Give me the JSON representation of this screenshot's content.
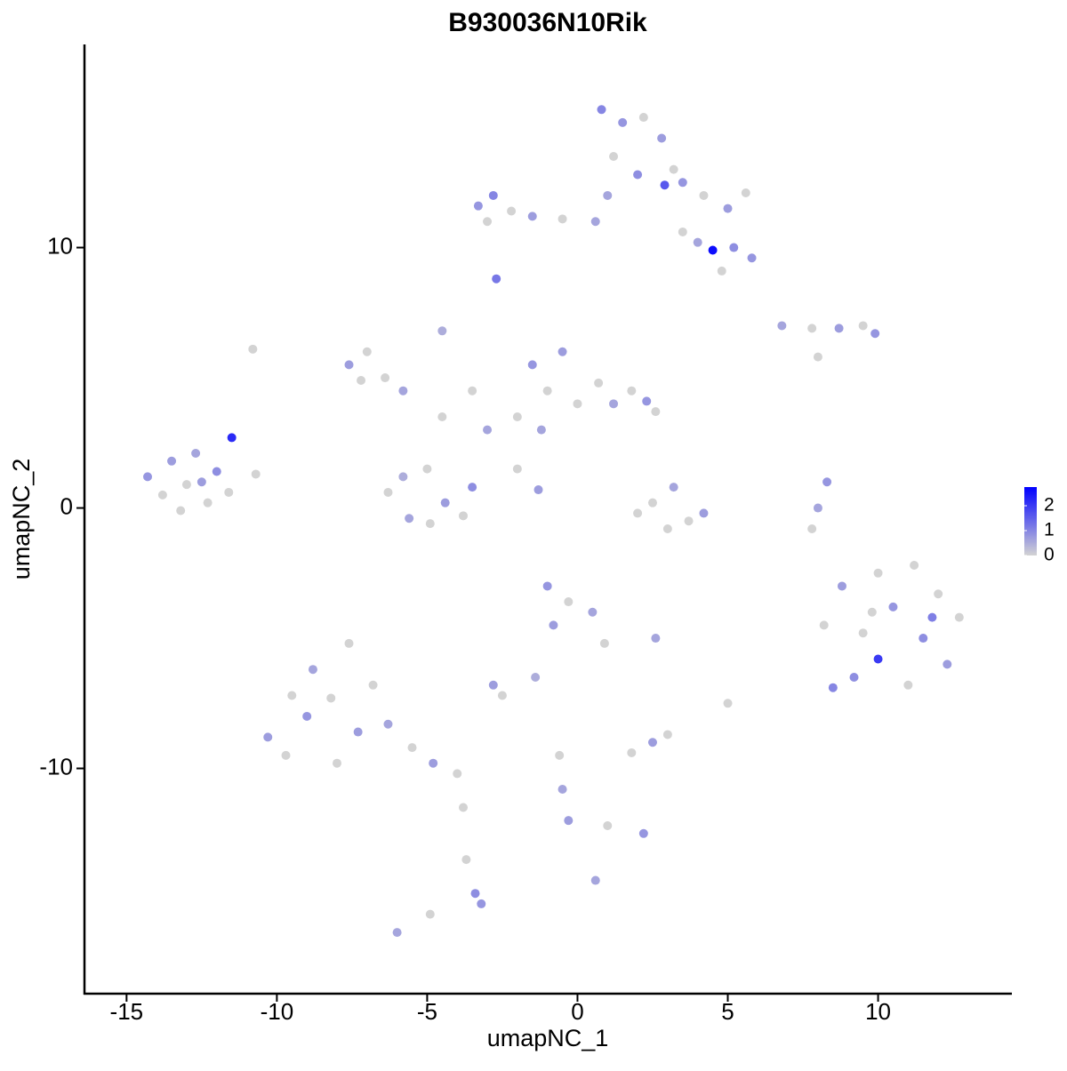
{
  "chart_data": {
    "type": "scatter",
    "title": "B930036N10Rik",
    "xlabel": "umapNC_1",
    "ylabel": "umapNC_2",
    "xlim": [
      -16.4,
      14.45
    ],
    "ylim": [
      -18.65,
      17.8
    ],
    "xticks": [
      -15,
      -10,
      -5,
      0,
      5,
      10
    ],
    "yticks": [
      -10,
      0,
      10
    ],
    "colors": [
      "#d3d3d3",
      "#0000ff"
    ],
    "colorlim": [
      0,
      2.75
    ],
    "colorticks": [
      0,
      1,
      2
    ],
    "points": [
      {
        "x": -14.3,
        "y": 1.2,
        "expression": 0.8
      },
      {
        "x": -13.8,
        "y": 0.5,
        "expression": 0
      },
      {
        "x": -13.5,
        "y": 1.8,
        "expression": 0.7
      },
      {
        "x": -13,
        "y": 0.9,
        "expression": 0
      },
      {
        "x": -12.7,
        "y": 2.1,
        "expression": 0.6
      },
      {
        "x": -12.3,
        "y": 0.2,
        "expression": 0
      },
      {
        "x": -12,
        "y": 1.4,
        "expression": 0.9
      },
      {
        "x": -11.6,
        "y": 0.6,
        "expression": 0
      },
      {
        "x": -11.5,
        "y": 2.7,
        "expression": 2.2
      },
      {
        "x": -10.7,
        "y": 1.3,
        "expression": 0
      },
      {
        "x": -13.2,
        "y": -0.1,
        "expression": 0
      },
      {
        "x": -12.5,
        "y": 1.0,
        "expression": 0.7
      },
      {
        "x": 0.8,
        "y": 15.3,
        "expression": 1.0
      },
      {
        "x": 1.5,
        "y": 14.8,
        "expression": 0.8
      },
      {
        "x": 2.2,
        "y": 15.0,
        "expression": 0
      },
      {
        "x": 2.8,
        "y": 14.2,
        "expression": 0.7
      },
      {
        "x": 1.2,
        "y": 13.5,
        "expression": 0
      },
      {
        "x": 2.0,
        "y": 12.8,
        "expression": 0.9
      },
      {
        "x": 3.2,
        "y": 13.0,
        "expression": 0
      },
      {
        "x": 1.0,
        "y": 12.0,
        "expression": 0.6
      },
      {
        "x": 3.5,
        "y": 12.5,
        "expression": 0.8
      },
      {
        "x": 4.2,
        "y": 12.0,
        "expression": 0
      },
      {
        "x": 5.0,
        "y": 11.5,
        "expression": 0.7
      },
      {
        "x": 5.6,
        "y": 12.1,
        "expression": 0
      },
      {
        "x": 2.9,
        "y": 12.4,
        "expression": 1.6
      },
      {
        "x": 4.0,
        "y": 10.2,
        "expression": 0.6
      },
      {
        "x": 4.5,
        "y": 9.9,
        "expression": 2.6
      },
      {
        "x": 5.2,
        "y": 10.0,
        "expression": 0.9
      },
      {
        "x": 5.8,
        "y": 9.6,
        "expression": 0.8
      },
      {
        "x": 4.8,
        "y": 9.1,
        "expression": 0
      },
      {
        "x": 3.5,
        "y": 10.6,
        "expression": 0
      },
      {
        "x": -3.3,
        "y": 11.6,
        "expression": 0.8
      },
      {
        "x": -2.8,
        "y": 12.0,
        "expression": 1.0
      },
      {
        "x": -2.2,
        "y": 11.4,
        "expression": 0
      },
      {
        "x": -1.5,
        "y": 11.2,
        "expression": 0.7
      },
      {
        "x": -0.5,
        "y": 11.1,
        "expression": 0
      },
      {
        "x": 0.6,
        "y": 11.0,
        "expression": 0.6
      },
      {
        "x": -2.7,
        "y": 8.8,
        "expression": 1.2
      },
      {
        "x": -3.0,
        "y": 11.0,
        "expression": 0
      },
      {
        "x": 6.8,
        "y": 7.0,
        "expression": 0.6
      },
      {
        "x": 7.8,
        "y": 6.9,
        "expression": 0
      },
      {
        "x": 8.7,
        "y": 6.9,
        "expression": 0.7
      },
      {
        "x": 9.5,
        "y": 7.0,
        "expression": 0
      },
      {
        "x": 9.9,
        "y": 6.7,
        "expression": 0.8
      },
      {
        "x": 8.0,
        "y": 5.8,
        "expression": 0
      },
      {
        "x": -6.3,
        "y": 0.6,
        "expression": 0
      },
      {
        "x": -5.6,
        "y": -0.4,
        "expression": 0.6
      },
      {
        "x": -5.0,
        "y": 1.5,
        "expression": 0
      },
      {
        "x": -4.4,
        "y": 0.2,
        "expression": 0.7
      },
      {
        "x": -3.8,
        "y": -0.3,
        "expression": 0
      },
      {
        "x": -4.9,
        "y": -0.6,
        "expression": 0
      },
      {
        "x": -5.8,
        "y": 1.2,
        "expression": 0.5
      },
      {
        "x": -3.5,
        "y": 0.8,
        "expression": 0.9
      },
      {
        "x": -7.6,
        "y": 5.5,
        "expression": 0.7
      },
      {
        "x": -7.0,
        "y": 6.0,
        "expression": 0
      },
      {
        "x": -6.4,
        "y": 5.0,
        "expression": 0
      },
      {
        "x": -5.8,
        "y": 4.5,
        "expression": 0.6
      },
      {
        "x": -7.2,
        "y": 4.9,
        "expression": 0
      },
      {
        "x": -4.5,
        "y": 3.5,
        "expression": 0
      },
      {
        "x": -3.5,
        "y": 4.5,
        "expression": 0
      },
      {
        "x": -3,
        "y": 3,
        "expression": 0.6
      },
      {
        "x": -4.5,
        "y": 6.8,
        "expression": 0.5
      },
      {
        "x": -1.5,
        "y": 5.5,
        "expression": 0.8
      },
      {
        "x": -1.0,
        "y": 4.5,
        "expression": 0
      },
      {
        "x": -0.5,
        "y": 6.0,
        "expression": 0.7
      },
      {
        "x": 0,
        "y": 4.0,
        "expression": 0
      },
      {
        "x": 0.7,
        "y": 4.8,
        "expression": 0
      },
      {
        "x": 1.2,
        "y": 4.0,
        "expression": 0.6
      },
      {
        "x": 1.8,
        "y": 4.5,
        "expression": 0
      },
      {
        "x": 2.3,
        "y": 4.1,
        "expression": 0.8
      },
      {
        "x": 2.6,
        "y": 3.7,
        "expression": 0
      },
      {
        "x": -2.0,
        "y": 3.5,
        "expression": 0
      },
      {
        "x": -1.2,
        "y": 3.0,
        "expression": 0.6
      },
      {
        "x": -2.0,
        "y": 1.5,
        "expression": 0
      },
      {
        "x": -1.3,
        "y": 0.7,
        "expression": 0.7
      },
      {
        "x": 2.5,
        "y": 0.2,
        "expression": 0
      },
      {
        "x": 3.2,
        "y": 0.8,
        "expression": 0.6
      },
      {
        "x": 3.7,
        "y": -0.5,
        "expression": 0
      },
      {
        "x": 4.2,
        "y": -0.2,
        "expression": 0.7
      },
      {
        "x": 2.0,
        "y": -0.2,
        "expression": 0
      },
      {
        "x": 3.0,
        "y": -0.8,
        "expression": 0
      },
      {
        "x": 8.3,
        "y": 1.0,
        "expression": 0.8
      },
      {
        "x": 8.0,
        "y": 0,
        "expression": 0.6
      },
      {
        "x": 7.8,
        "y": -0.8,
        "expression": 0
      },
      {
        "x": 8.2,
        "y": -4.5,
        "expression": 0
      },
      {
        "x": 8.8,
        "y": -3.0,
        "expression": 0.7
      },
      {
        "x": 9.2,
        "y": -6.5,
        "expression": 0.9
      },
      {
        "x": 9.5,
        "y": -4.8,
        "expression": 0
      },
      {
        "x": 10.0,
        "y": -2.5,
        "expression": 0
      },
      {
        "x": 10.0,
        "y": -5.8,
        "expression": 2.0
      },
      {
        "x": 10.5,
        "y": -3.8,
        "expression": 0.8
      },
      {
        "x": 11.0,
        "y": -6.8,
        "expression": 0
      },
      {
        "x": 11.2,
        "y": -2.2,
        "expression": 0
      },
      {
        "x": 11.5,
        "y": -5.0,
        "expression": 0.9
      },
      {
        "x": 12.0,
        "y": -3.3,
        "expression": 0
      },
      {
        "x": 12.3,
        "y": -6.0,
        "expression": 0.7
      },
      {
        "x": 12.7,
        "y": -4.2,
        "expression": 0
      },
      {
        "x": 8.5,
        "y": -6.9,
        "expression": 1.0
      },
      {
        "x": 11.8,
        "y": -4.2,
        "expression": 1.1
      },
      {
        "x": 9.8,
        "y": -4.0,
        "expression": 0
      },
      {
        "x": -10.3,
        "y": -8.8,
        "expression": 0.7
      },
      {
        "x": -9.7,
        "y": -9.5,
        "expression": 0
      },
      {
        "x": -9.0,
        "y": -8.0,
        "expression": 0.8
      },
      {
        "x": -8.8,
        "y": -6.2,
        "expression": 0.6
      },
      {
        "x": -8.2,
        "y": -7.3,
        "expression": 0
      },
      {
        "x": -8.0,
        "y": -9.8,
        "expression": 0
      },
      {
        "x": -7.6,
        "y": -5.2,
        "expression": 0
      },
      {
        "x": -7.3,
        "y": -8.6,
        "expression": 0.7
      },
      {
        "x": -6.8,
        "y": -6.8,
        "expression": 0
      },
      {
        "x": -6.3,
        "y": -8.3,
        "expression": 0.6
      },
      {
        "x": -5.5,
        "y": -9.2,
        "expression": 0
      },
      {
        "x": -4.8,
        "y": -9.8,
        "expression": 0.7
      },
      {
        "x": -4.0,
        "y": -10.2,
        "expression": 0
      },
      {
        "x": -9.5,
        "y": -7.2,
        "expression": 0
      },
      {
        "x": -3.8,
        "y": -11.5,
        "expression": 0
      },
      {
        "x": -3.7,
        "y": -13.5,
        "expression": 0
      },
      {
        "x": -3.4,
        "y": -14.8,
        "expression": 0.9
      },
      {
        "x": -3.2,
        "y": -15.2,
        "expression": 0.8
      },
      {
        "x": -6.0,
        "y": -16.3,
        "expression": 0.6
      },
      {
        "x": -4.9,
        "y": -15.6,
        "expression": 0
      },
      {
        "x": -1.0,
        "y": -3.0,
        "expression": 0.8
      },
      {
        "x": -0.3,
        "y": -3.6,
        "expression": 0
      },
      {
        "x": 0.5,
        "y": -4.0,
        "expression": 0.6
      },
      {
        "x": -0.8,
        "y": -4.5,
        "expression": 0.7
      },
      {
        "x": 0.9,
        "y": -5.2,
        "expression": 0
      },
      {
        "x": -1.4,
        "y": -6.5,
        "expression": 0.5
      },
      {
        "x": -2.8,
        "y": -6.8,
        "expression": 0.7
      },
      {
        "x": -2.5,
        "y": -7.2,
        "expression": 0
      },
      {
        "x": 1.8,
        "y": -9.4,
        "expression": 0
      },
      {
        "x": 2.5,
        "y": -9.0,
        "expression": 0.7
      },
      {
        "x": 3.0,
        "y": -8.7,
        "expression": 0
      },
      {
        "x": 2.6,
        "y": -5.0,
        "expression": 0.6
      },
      {
        "x": 5.0,
        "y": -7.5,
        "expression": 0
      },
      {
        "x": -0.6,
        "y": -9.5,
        "expression": 0
      },
      {
        "x": -0.5,
        "y": -10.8,
        "expression": 0.6
      },
      {
        "x": -0.3,
        "y": -12.0,
        "expression": 0.7
      },
      {
        "x": 1.0,
        "y": -12.2,
        "expression": 0
      },
      {
        "x": 2.2,
        "y": -12.5,
        "expression": 0.8
      },
      {
        "x": 0.6,
        "y": -14.3,
        "expression": 0.6
      },
      {
        "x": -10.8,
        "y": 6.1,
        "expression": 0
      }
    ]
  }
}
